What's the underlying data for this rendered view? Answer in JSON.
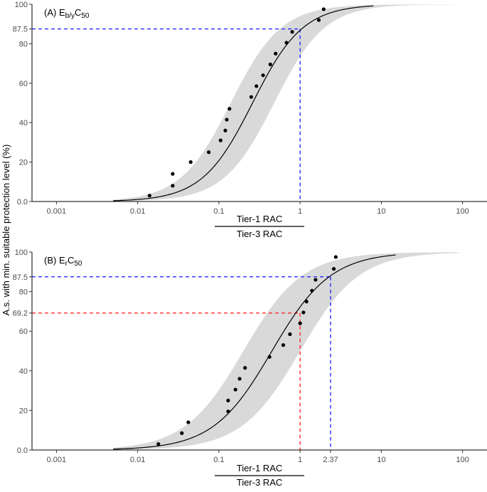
{
  "shared": {
    "ylabel": "A.s. with min. suitable protection level (%)",
    "xlabel_numerator": "Tier-1 RAC",
    "xlabel_denominator": "Tier-3 RAC"
  },
  "chart_data": [
    {
      "type": "scatter",
      "panel": "A",
      "title_prefix": "(A) E",
      "title_sub": "b/y",
      "title_mid": "C",
      "title_sub2": "50",
      "xscale": "log10",
      "xlim": [
        0.0005,
        200
      ],
      "ylim": [
        0,
        100
      ],
      "x_ticks": [
        0.001,
        0.01,
        0.1,
        1,
        10,
        100
      ],
      "x_tick_labels": [
        "0.001",
        "0.01",
        "0.1",
        "1",
        "10",
        "100"
      ],
      "y_ticks": [
        0,
        20,
        40,
        60,
        80,
        87.5,
        100
      ],
      "y_tick_labels": [
        "0.0",
        "20",
        "40",
        "60",
        "80",
        "87.5",
        "100"
      ],
      "curve": {
        "ec50": 0.26,
        "slope": 1.4,
        "x_start": 0.005,
        "x_end": 8
      },
      "band": {
        "ec50_lower": 0.14,
        "ec50_upper": 0.48,
        "x_start": 0.005,
        "x_end": 90
      },
      "points": [
        [
          0.014,
          3
        ],
        [
          0.027,
          8
        ],
        [
          0.027,
          14
        ],
        [
          0.045,
          20
        ],
        [
          0.075,
          25
        ],
        [
          0.105,
          31
        ],
        [
          0.12,
          36
        ],
        [
          0.125,
          41.5
        ],
        [
          0.135,
          47
        ],
        [
          0.25,
          53
        ],
        [
          0.29,
          58.5
        ],
        [
          0.35,
          64
        ],
        [
          0.43,
          69.5
        ],
        [
          0.5,
          75
        ],
        [
          0.68,
          80.5
        ],
        [
          0.8,
          86
        ],
        [
          1.7,
          92
        ],
        [
          1.95,
          97.5
        ]
      ],
      "reference_lines": [
        {
          "y": 87.5,
          "x": 1.0,
          "color": "#1a1aff",
          "label": "87.5"
        }
      ],
      "x_extra_label": null
    },
    {
      "type": "scatter",
      "panel": "B",
      "title_prefix": "(B) E",
      "title_sub": "r",
      "title_mid": "C",
      "title_sub2": "50",
      "xscale": "log10",
      "xlim": [
        0.0005,
        200
      ],
      "ylim": [
        0,
        100
      ],
      "x_ticks": [
        0.001,
        0.01,
        0.1,
        1,
        2.37,
        10,
        100
      ],
      "x_tick_labels": [
        "0.001",
        "0.01",
        "0.1",
        "1",
        "2.37",
        "10",
        "100"
      ],
      "y_ticks": [
        0,
        20,
        40,
        60,
        69.2,
        80,
        87.5,
        100
      ],
      "y_tick_labels": [
        "0.0",
        "20",
        "40",
        "60",
        "69.2",
        "80",
        "87.5",
        "100"
      ],
      "curve": {
        "ec50": 0.45,
        "slope": 1.2,
        "x_start": 0.005,
        "x_end": 15
      },
      "band": {
        "ec50_lower": 0.2,
        "ec50_upper": 1.0,
        "x_start": 0.005,
        "x_end": 90
      },
      "points": [
        [
          0.018,
          3
        ],
        [
          0.035,
          8.5
        ],
        [
          0.042,
          14
        ],
        [
          0.13,
          19.5
        ],
        [
          0.13,
          25
        ],
        [
          0.16,
          30.5
        ],
        [
          0.18,
          36
        ],
        [
          0.21,
          41.5
        ],
        [
          0.42,
          47
        ],
        [
          0.62,
          53
        ],
        [
          0.75,
          58.5
        ],
        [
          1.0,
          64
        ],
        [
          1.1,
          69.5
        ],
        [
          1.2,
          75
        ],
        [
          1.4,
          80.5
        ],
        [
          1.55,
          86
        ],
        [
          2.6,
          91.5
        ],
        [
          2.75,
          97.5
        ]
      ],
      "reference_lines": [
        {
          "y": 87.5,
          "x": 2.37,
          "color": "#1a1aff",
          "label": "87.5"
        },
        {
          "y": 69.2,
          "x": 1.0,
          "color": "#ff1a1a",
          "label": "69.2"
        }
      ],
      "x_extra_label": "2.37"
    }
  ]
}
